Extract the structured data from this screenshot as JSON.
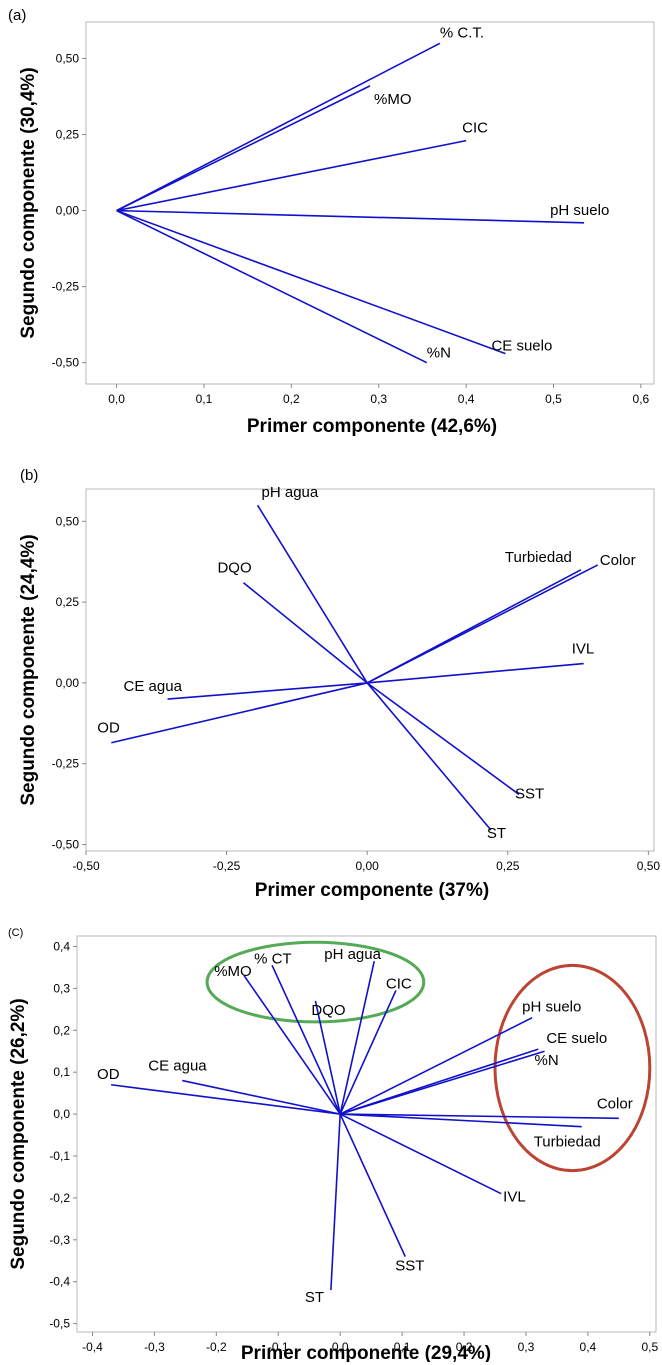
{
  "chart_data": [
    {
      "type": "biplot",
      "panel_label": "(a)",
      "xlabel": "Primer componente (42,6%)",
      "ylabel": "Segundo componente (30,4%)",
      "xticks": [
        "0,0",
        "0,1",
        "0,2",
        "0,3",
        "0,4",
        "0,5",
        "0,6"
      ],
      "xtick_values": [
        0,
        0.1,
        0.2,
        0.3,
        0.4,
        0.5,
        0.6
      ],
      "yticks": [
        "0,50",
        "0,25",
        "0,00",
        "-0,25",
        "-0,50"
      ],
      "ytick_values": [
        0.5,
        0.25,
        0,
        -0.25,
        -0.5
      ],
      "xlim": [
        -0.035,
        0.615
      ],
      "ylim": [
        -0.57,
        0.62
      ],
      "vectors": [
        {
          "label": "% C.T.",
          "x": 0.37,
          "y": 0.55
        },
        {
          "label": "%MO",
          "x": 0.29,
          "y": 0.41
        },
        {
          "label": "CIC",
          "x": 0.4,
          "y": 0.23
        },
        {
          "label": "pH suelo",
          "x": 0.535,
          "y": -0.04
        },
        {
          "label": "CE suelo",
          "x": 0.445,
          "y": -0.47
        },
        {
          "label": "%N",
          "x": 0.355,
          "y": -0.5
        }
      ],
      "outlines": []
    },
    {
      "type": "biplot",
      "panel_label": "(b)",
      "xlabel": "Primer componente (37%)",
      "ylabel": "Segundo componente (24,4%)",
      "xticks": [
        "-0,50",
        "-0,25",
        "0,00",
        "0,25",
        "0,50"
      ],
      "xtick_values": [
        -0.5,
        -0.25,
        0,
        0.25,
        0.5
      ],
      "yticks": [
        "0,50",
        "0,25",
        "0,00",
        "-0,25",
        "-0,50"
      ],
      "ytick_values": [
        0.5,
        0.25,
        0,
        -0.25,
        -0.5
      ],
      "xlim": [
        -0.5,
        0.51
      ],
      "ylim": [
        -0.52,
        0.6
      ],
      "vectors": [
        {
          "label": "pH agua",
          "x": -0.195,
          "y": 0.55
        },
        {
          "label": "DQO",
          "x": -0.22,
          "y": 0.31
        },
        {
          "label": "Turbiedad",
          "x": 0.38,
          "y": 0.35
        },
        {
          "label": "Color",
          "x": 0.41,
          "y": 0.365
        },
        {
          "label": "IVL",
          "x": 0.385,
          "y": 0.06
        },
        {
          "label": "CE agua",
          "x": -0.355,
          "y": -0.05
        },
        {
          "label": "OD",
          "x": -0.455,
          "y": -0.185
        },
        {
          "label": "SST",
          "x": 0.27,
          "y": -0.345
        },
        {
          "label": "ST",
          "x": 0.22,
          "y": -0.455
        }
      ],
      "outlines": []
    },
    {
      "type": "biplot",
      "panel_label": "(C)",
      "xlabel": "Primer componente  (29,4%)",
      "ylabel": "Segundo componente (26,2%)",
      "xticks": [
        "-0,4",
        "-0,3",
        "-0,2",
        "-0,1",
        "0,0",
        "0,1",
        "0,2",
        "0,3",
        "0,4",
        "0,5"
      ],
      "xtick_values": [
        -0.4,
        -0.3,
        -0.2,
        -0.1,
        0,
        0.1,
        0.2,
        0.3,
        0.4,
        0.5
      ],
      "yticks": [
        "0,4",
        "0,3",
        "0,2",
        "0,1",
        "0,0",
        "-0,1",
        "-0,2",
        "-0,3",
        "-0,4",
        "-0,5"
      ],
      "ytick_values": [
        0.4,
        0.3,
        0.2,
        0.1,
        0,
        -0.1,
        -0.2,
        -0.3,
        -0.4,
        -0.5
      ],
      "xlim": [
        -0.425,
        0.51
      ],
      "ylim": [
        -0.52,
        0.425
      ],
      "vectors": [
        {
          "label": "%MO",
          "x": -0.155,
          "y": 0.33
        },
        {
          "label": "% CT",
          "x": -0.11,
          "y": 0.355
        },
        {
          "label": "DQO",
          "x": -0.04,
          "y": 0.27
        },
        {
          "label": "pH agua",
          "x": 0.055,
          "y": 0.365
        },
        {
          "label": "CIC",
          "x": 0.09,
          "y": 0.295
        },
        {
          "label": "pH suelo",
          "x": 0.31,
          "y": 0.23
        },
        {
          "label": "CE suelo",
          "x": 0.32,
          "y": 0.155
        },
        {
          "label": "%N",
          "x": 0.33,
          "y": 0.15
        },
        {
          "label": "Color",
          "x": 0.45,
          "y": -0.01
        },
        {
          "label": "Turbiedad",
          "x": 0.39,
          "y": -0.03
        },
        {
          "label": "OD",
          "x": -0.37,
          "y": 0.07
        },
        {
          "label": "CE agua",
          "x": -0.255,
          "y": 0.08
        },
        {
          "label": "IVL",
          "x": 0.26,
          "y": -0.19
        },
        {
          "label": "SST",
          "x": 0.105,
          "y": -0.34
        },
        {
          "label": "ST",
          "x": -0.015,
          "y": -0.42
        }
      ],
      "outlines": [
        {
          "name": "green-group",
          "color": "#55aa55",
          "cx": -0.04,
          "cy": 0.315,
          "rx": 0.175,
          "ry": 0.095
        },
        {
          "name": "red-group",
          "color": "#bb4433",
          "cx": 0.375,
          "cy": 0.11,
          "rx": 0.125,
          "ry": 0.245
        }
      ]
    }
  ],
  "colors": {
    "vector": "#1111cc",
    "frame": "#b9b9b9",
    "green": "#55aa55",
    "red": "#bb4433"
  }
}
